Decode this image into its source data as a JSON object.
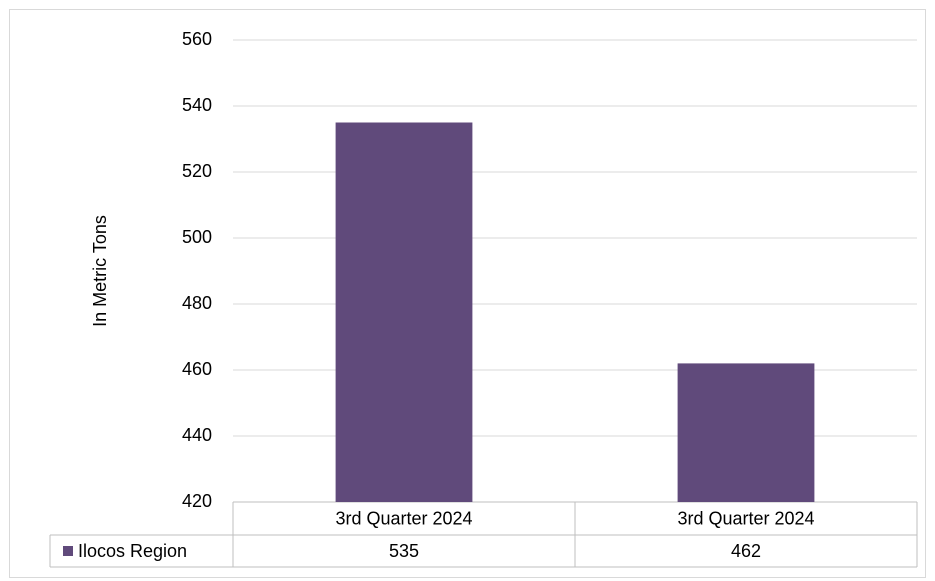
{
  "chart_data": {
    "type": "bar",
    "y_label": "In Metric Tons",
    "categories": [
      "3rd Quarter 2024",
      "3rd Quarter 2024"
    ],
    "series": [
      {
        "name": "Ilocos Region",
        "color": "#604a7b",
        "values": [
          535,
          462
        ]
      }
    ],
    "ylim": [
      420,
      560
    ],
    "yticks": [
      420,
      440,
      460,
      480,
      500,
      520,
      540,
      560
    ],
    "grid": true,
    "data_table": true
  }
}
